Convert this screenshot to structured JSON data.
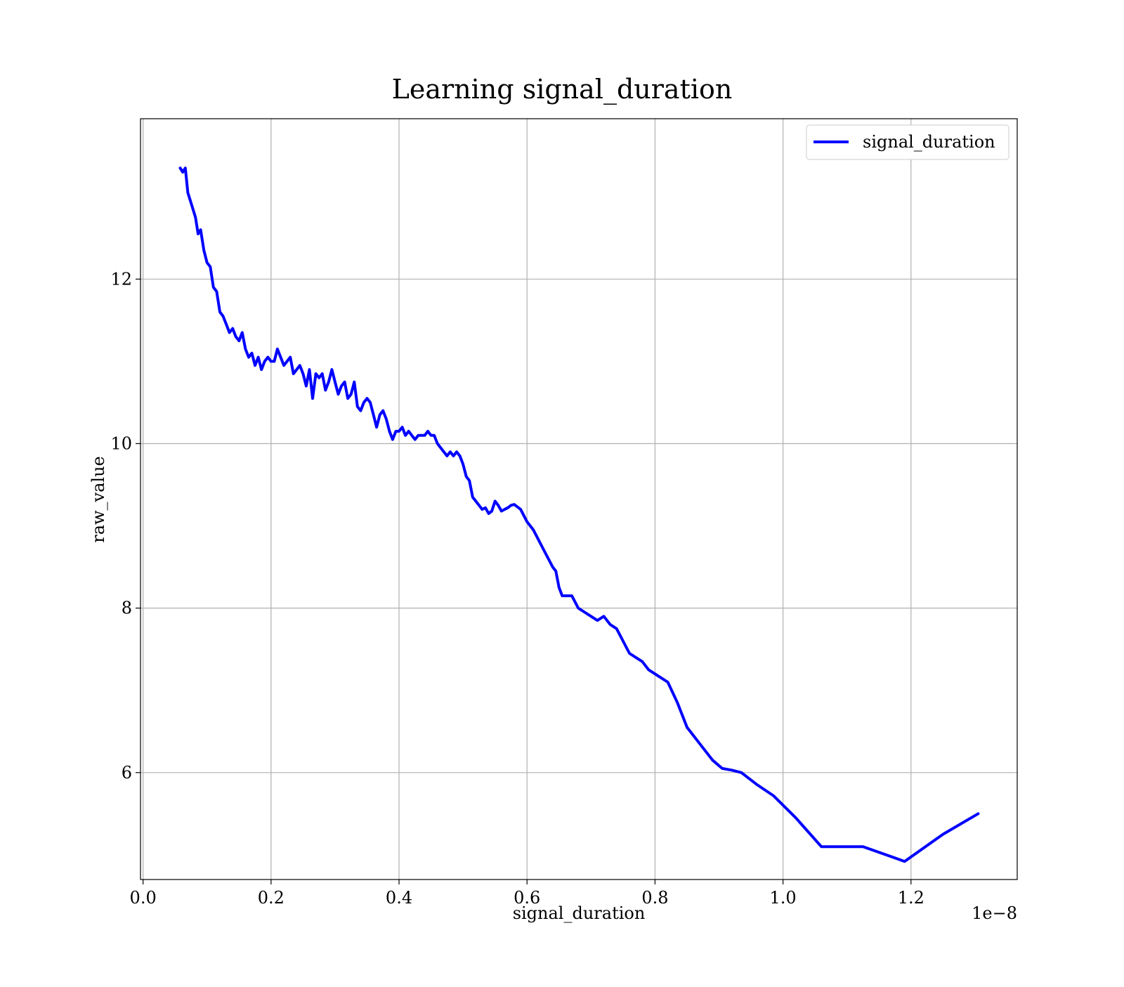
{
  "chart_data": {
    "type": "line",
    "title": "Learning signal_duration",
    "xlabel": "signal_duration",
    "ylabel": "raw_value",
    "x_offset_label": "1e−8",
    "xlim": [
      -0.004,
      1.366
    ],
    "ylim": [
      4.7,
      13.95
    ],
    "x_ticks": [
      0.0,
      0.2,
      0.4,
      0.6,
      0.8,
      1.0,
      1.2
    ],
    "x_tick_labels": [
      "0.0",
      "0.2",
      "0.4",
      "0.6",
      "0.8",
      "1.0",
      "1.2"
    ],
    "y_ticks": [
      6,
      8,
      10,
      12
    ],
    "y_tick_labels": [
      "6",
      "8",
      "10",
      "12"
    ],
    "grid": true,
    "legend_position": "top-right",
    "series": [
      {
        "name": "signal_duration",
        "color": "#0000ff",
        "x": [
          0.058,
          0.062,
          0.066,
          0.07,
          0.074,
          0.078,
          0.082,
          0.086,
          0.09,
          0.095,
          0.1,
          0.105,
          0.11,
          0.115,
          0.12,
          0.125,
          0.13,
          0.135,
          0.14,
          0.145,
          0.15,
          0.155,
          0.16,
          0.165,
          0.17,
          0.175,
          0.18,
          0.185,
          0.19,
          0.195,
          0.2,
          0.205,
          0.21,
          0.215,
          0.22,
          0.225,
          0.23,
          0.235,
          0.24,
          0.245,
          0.25,
          0.255,
          0.26,
          0.265,
          0.27,
          0.275,
          0.28,
          0.285,
          0.29,
          0.295,
          0.3,
          0.305,
          0.31,
          0.315,
          0.32,
          0.325,
          0.33,
          0.335,
          0.34,
          0.345,
          0.35,
          0.355,
          0.36,
          0.365,
          0.37,
          0.375,
          0.38,
          0.385,
          0.39,
          0.395,
          0.4,
          0.405,
          0.41,
          0.415,
          0.42,
          0.425,
          0.43,
          0.435,
          0.44,
          0.445,
          0.45,
          0.455,
          0.46,
          0.465,
          0.47,
          0.475,
          0.48,
          0.485,
          0.49,
          0.495,
          0.5,
          0.505,
          0.51,
          0.515,
          0.52,
          0.525,
          0.53,
          0.535,
          0.54,
          0.545,
          0.55,
          0.555,
          0.56,
          0.565,
          0.57,
          0.575,
          0.58,
          0.59,
          0.6,
          0.61,
          0.62,
          0.63,
          0.64,
          0.645,
          0.65,
          0.655,
          0.66,
          0.67,
          0.68,
          0.69,
          0.7,
          0.71,
          0.72,
          0.73,
          0.74,
          0.75,
          0.76,
          0.77,
          0.78,
          0.79,
          0.8,
          0.81,
          0.82,
          0.835,
          0.85,
          0.87,
          0.89,
          0.905,
          0.92,
          0.935,
          0.96,
          0.985,
          1.02,
          1.06,
          1.09,
          1.125,
          1.19,
          1.25,
          1.305
        ],
        "y": [
          13.35,
          13.3,
          13.35,
          13.05,
          12.95,
          12.85,
          12.75,
          12.55,
          12.6,
          12.35,
          12.2,
          12.15,
          11.9,
          11.85,
          11.6,
          11.55,
          11.45,
          11.35,
          11.4,
          11.3,
          11.25,
          11.35,
          11.15,
          11.05,
          11.1,
          10.95,
          11.05,
          10.9,
          11.0,
          11.05,
          11.0,
          11.0,
          11.15,
          11.05,
          10.95,
          11.0,
          11.05,
          10.85,
          10.9,
          10.95,
          10.85,
          10.7,
          10.9,
          10.55,
          10.85,
          10.8,
          10.85,
          10.65,
          10.75,
          10.9,
          10.75,
          10.6,
          10.7,
          10.75,
          10.55,
          10.6,
          10.75,
          10.45,
          10.4,
          10.5,
          10.55,
          10.5,
          10.35,
          10.2,
          10.35,
          10.4,
          10.3,
          10.15,
          10.05,
          10.15,
          10.15,
          10.2,
          10.1,
          10.15,
          10.1,
          10.05,
          10.1,
          10.1,
          10.1,
          10.15,
          10.1,
          10.1,
          10.0,
          9.95,
          9.9,
          9.85,
          9.9,
          9.85,
          9.9,
          9.85,
          9.75,
          9.6,
          9.55,
          9.35,
          9.3,
          9.25,
          9.2,
          9.22,
          9.15,
          9.18,
          9.3,
          9.25,
          9.18,
          9.2,
          9.22,
          9.25,
          9.26,
          9.2,
          9.05,
          8.95,
          8.8,
          8.65,
          8.5,
          8.45,
          8.25,
          8.15,
          8.15,
          8.15,
          8.0,
          7.95,
          7.9,
          7.85,
          7.9,
          7.8,
          7.75,
          7.6,
          7.45,
          7.4,
          7.35,
          7.25,
          7.2,
          7.15,
          7.1,
          6.85,
          6.55,
          6.35,
          6.15,
          6.05,
          6.03,
          6.0,
          5.85,
          5.72,
          5.45,
          5.1,
          5.1,
          5.1,
          4.92,
          5.25,
          5.5
        ]
      }
    ]
  }
}
